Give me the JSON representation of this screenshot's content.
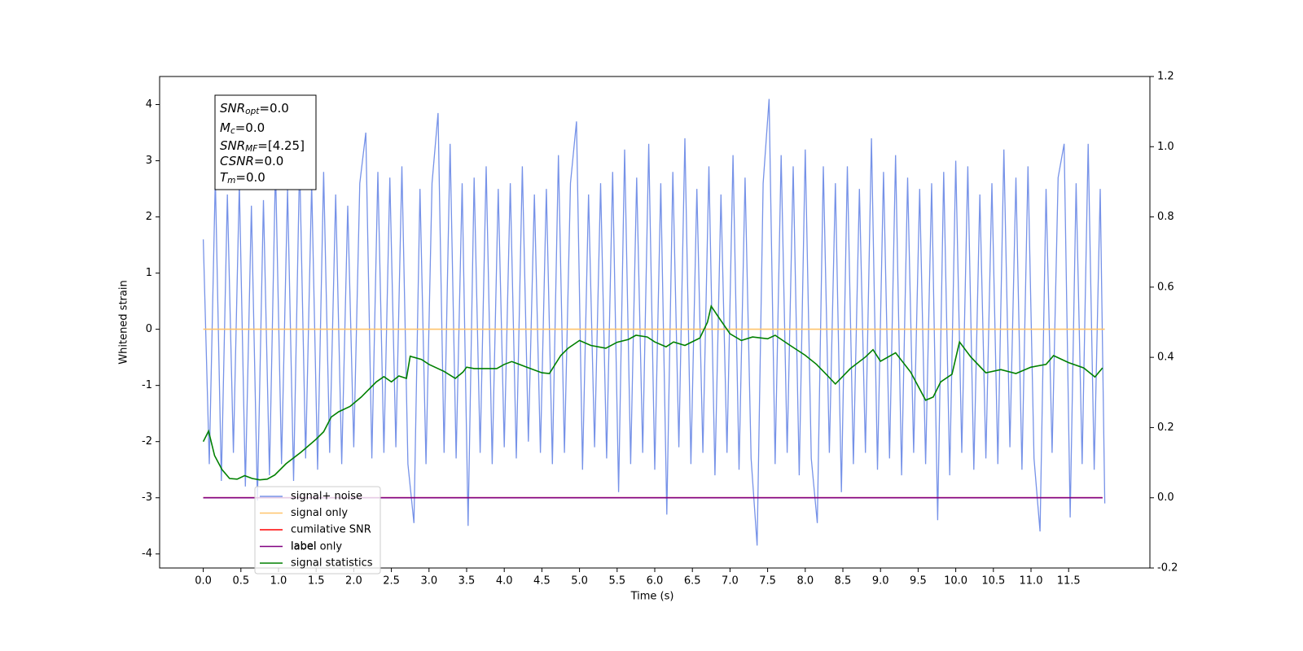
{
  "chart_data": {
    "type": "line",
    "xlabel": "Time (s)",
    "ylabel": "Whitened strain",
    "xlim": [
      -0.58,
      12.58
    ],
    "ylim": [
      -4.25,
      4.5
    ],
    "y2lim": [
      -0.2,
      1.2
    ],
    "xticks": [
      {
        "value": 0,
        "label": "0.0"
      },
      0.5,
      {
        "value": 1,
        "label": "1.0"
      },
      1.5,
      {
        "value": 2,
        "label": "2.0"
      },
      2.5,
      {
        "value": 3,
        "label": "3.0"
      },
      3.5,
      {
        "value": 4,
        "label": "4.0"
      },
      4.5,
      {
        "value": 5,
        "label": "5.0"
      },
      5.5,
      {
        "value": 6,
        "label": "6.0"
      },
      6.5,
      {
        "value": 7,
        "label": "7.0"
      },
      7.5,
      {
        "value": 8,
        "label": "8.0"
      },
      8.5,
      {
        "value": 9,
        "label": "9.0"
      },
      9.5,
      {
        "value": 10,
        "label": "10.0"
      },
      10.5,
      {
        "value": 11,
        "label": "11.0"
      },
      11.5
    ],
    "yticks": [
      -4,
      -3,
      -2,
      -1,
      0,
      1,
      2,
      3,
      4
    ],
    "y2ticks": [
      -0.2,
      {
        "value": 0,
        "label": "0.0"
      },
      0.2,
      0.4,
      0.6,
      0.8,
      {
        "value": 1,
        "label": "1.0"
      },
      1.2
    ],
    "grid": false,
    "annotation": [
      {
        "base": "SNR",
        "sub": "opt",
        "rest": "=0.0"
      },
      {
        "base": "M",
        "sub": "c",
        "rest": "=0.0"
      },
      {
        "base": "SNR",
        "sub": "MF",
        "rest": "=[4.25]"
      },
      {
        "base": "CSNR",
        "sub": "",
        "rest": "=0.0"
      },
      {
        "base": "T",
        "sub": "m",
        "rest": "=0.0"
      }
    ],
    "legend_loc": "lower left",
    "hidden_legend_text": "label only",
    "series": [
      {
        "name": "signal+ noise",
        "color": "#7692e8",
        "axis": "y",
        "x": [
          0,
          0.08,
          0.16,
          0.24,
          0.32,
          0.4,
          0.48,
          0.56,
          0.64,
          0.72,
          0.8,
          0.88,
          0.96,
          1.04,
          1.12,
          1.2,
          1.28,
          1.36,
          1.44,
          1.52,
          1.6,
          1.68,
          1.76,
          1.84,
          1.92,
          2,
          2.08,
          2.16,
          2.24,
          2.32,
          2.4,
          2.48,
          2.56,
          2.64,
          2.72,
          2.8,
          2.88,
          2.96,
          3.04,
          3.12,
          3.2,
          3.28,
          3.36,
          3.44,
          3.52,
          3.6,
          3.68,
          3.76,
          3.84,
          3.92,
          4,
          4.08,
          4.16,
          4.24,
          4.32,
          4.4,
          4.48,
          4.56,
          4.64,
          4.72,
          4.8,
          4.88,
          4.96,
          5.04,
          5.12,
          5.2,
          5.28,
          5.36,
          5.44,
          5.52,
          5.6,
          5.68,
          5.76,
          5.84,
          5.92,
          6,
          6.08,
          6.16,
          6.24,
          6.32,
          6.4,
          6.48,
          6.56,
          6.64,
          6.72,
          6.8,
          6.88,
          6.96,
          7.04,
          7.12,
          7.2,
          7.28,
          7.36,
          7.44,
          7.52,
          7.6,
          7.68,
          7.76,
          7.84,
          7.92,
          8,
          8.08,
          8.16,
          8.24,
          8.32,
          8.4,
          8.48,
          8.56,
          8.64,
          8.72,
          8.8,
          8.88,
          8.96,
          9.04,
          9.12,
          9.2,
          9.28,
          9.36,
          9.44,
          9.52,
          9.6,
          9.68,
          9.76,
          9.84,
          9.92,
          10,
          10.08,
          10.16,
          10.24,
          10.32,
          10.4,
          10.48,
          10.56,
          10.64,
          10.72,
          10.8,
          10.88,
          10.96,
          11.04,
          11.12,
          11.2,
          11.28,
          11.36,
          11.44,
          11.52,
          11.6,
          11.68,
          11.76,
          11.84,
          11.92,
          11.98
        ],
        "values": [
          1.6,
          -2.4,
          2.7,
          -2.7,
          2.4,
          -2.2,
          2.6,
          -2.8,
          2.2,
          -3.05,
          2.3,
          -2.6,
          2.9,
          -2.4,
          2.5,
          -2.7,
          3.0,
          -2.3,
          2.6,
          -2.5,
          2.8,
          -2.2,
          2.4,
          -2.4,
          2.2,
          -2.1,
          2.6,
          3.5,
          -2.3,
          2.8,
          -2.2,
          2.7,
          -2.1,
          2.9,
          -2.4,
          -3.45,
          2.5,
          -2.4,
          2.6,
          3.85,
          -2.2,
          3.3,
          -2.3,
          2.6,
          -3.5,
          2.7,
          -2.2,
          2.9,
          -2.4,
          2.5,
          -2.1,
          2.6,
          -2.3,
          2.9,
          -2.0,
          2.4,
          -2.2,
          2.5,
          -2.4,
          3.1,
          -2.2,
          2.6,
          3.7,
          -2.5,
          2.4,
          -2.1,
          2.6,
          -2.3,
          2.8,
          -2.9,
          3.2,
          -2.4,
          2.7,
          -2.2,
          3.3,
          -2.5,
          2.6,
          -3.3,
          2.8,
          -2.1,
          3.4,
          -2.4,
          2.5,
          -2.2,
          2.9,
          -2.6,
          2.4,
          -2.2,
          3.1,
          -2.5,
          2.7,
          -2.3,
          -3.85,
          2.6,
          4.1,
          -2.4,
          3.1,
          -2.2,
          2.9,
          -2.6,
          3.2,
          -2.3,
          -3.45,
          2.9,
          -2.2,
          2.6,
          -2.9,
          2.9,
          -2.4,
          2.5,
          -2.2,
          3.4,
          -2.5,
          2.8,
          -2.3,
          3.1,
          -2.6,
          2.7,
          -2.2,
          2.5,
          -2.4,
          2.6,
          -3.4,
          2.8,
          -2.6,
          3.0,
          -2.2,
          2.9,
          -2.5,
          2.4,
          -2.3,
          2.6,
          -2.4,
          3.2,
          -2.1,
          2.7,
          -2.5,
          2.9,
          -2.3,
          -3.6,
          2.5,
          -2.2,
          2.7,
          3.3,
          -3.35,
          2.6,
          -2.4,
          3.3,
          -2.5,
          2.5,
          -3.1
        ]
      },
      {
        "name": "signal only",
        "color": "#ffc46b",
        "axis": "y",
        "x": [
          0,
          11.98
        ],
        "values": [
          0,
          0
        ]
      },
      {
        "name": "cumilative SNR",
        "color": "#ff0000",
        "axis": "y2",
        "x": [
          0,
          11.95
        ],
        "values": [
          0,
          0
        ]
      },
      {
        "name": "label",
        "color": "#800080",
        "axis": "y2",
        "x": [
          0,
          11.95
        ],
        "values": [
          0,
          0
        ]
      },
      {
        "name": "signal statistics",
        "color": "#008000",
        "axis": "y2",
        "x": [
          0,
          0.07,
          0.15,
          0.25,
          0.35,
          0.45,
          0.55,
          0.65,
          0.75,
          0.85,
          0.95,
          1.1,
          1.3,
          1.5,
          1.6,
          1.7,
          1.8,
          1.95,
          2.1,
          2.3,
          2.4,
          2.5,
          2.6,
          2.7,
          2.75,
          2.9,
          3.0,
          3.2,
          3.35,
          3.45,
          3.5,
          3.6,
          3.8,
          3.9,
          4.0,
          4.1,
          4.3,
          4.5,
          4.6,
          4.75,
          4.85,
          5.0,
          5.15,
          5.35,
          5.5,
          5.65,
          5.75,
          5.9,
          6.0,
          6.15,
          6.25,
          6.4,
          6.6,
          6.7,
          6.75,
          6.85,
          7.0,
          7.15,
          7.3,
          7.5,
          7.6,
          7.8,
          8.0,
          8.15,
          8.3,
          8.4,
          8.6,
          8.8,
          8.9,
          9.0,
          9.2,
          9.4,
          9.5,
          9.6,
          9.7,
          9.8,
          9.95,
          10.05,
          10.2,
          10.4,
          10.6,
          10.8,
          11.0,
          11.2,
          11.3,
          11.5,
          11.7,
          11.85,
          11.95
        ],
        "values": [
          0.16,
          0.19,
          0.12,
          0.08,
          0.055,
          0.053,
          0.063,
          0.055,
          0.051,
          0.053,
          0.065,
          0.097,
          0.13,
          0.167,
          0.188,
          0.23,
          0.245,
          0.26,
          0.287,
          0.33,
          0.345,
          0.33,
          0.347,
          0.34,
          0.403,
          0.394,
          0.38,
          0.36,
          0.34,
          0.358,
          0.372,
          0.368,
          0.368,
          0.368,
          0.38,
          0.388,
          0.372,
          0.356,
          0.354,
          0.405,
          0.426,
          0.448,
          0.434,
          0.426,
          0.443,
          0.451,
          0.463,
          0.458,
          0.444,
          0.43,
          0.444,
          0.434,
          0.455,
          0.5,
          0.546,
          0.514,
          0.467,
          0.448,
          0.458,
          0.453,
          0.463,
          0.434,
          0.406,
          0.38,
          0.347,
          0.324,
          0.368,
          0.401,
          0.422,
          0.389,
          0.413,
          0.358,
          0.318,
          0.278,
          0.287,
          0.33,
          0.352,
          0.444,
          0.401,
          0.356,
          0.365,
          0.354,
          0.372,
          0.38,
          0.405,
          0.385,
          0.37,
          0.344,
          0.37
        ]
      }
    ]
  }
}
